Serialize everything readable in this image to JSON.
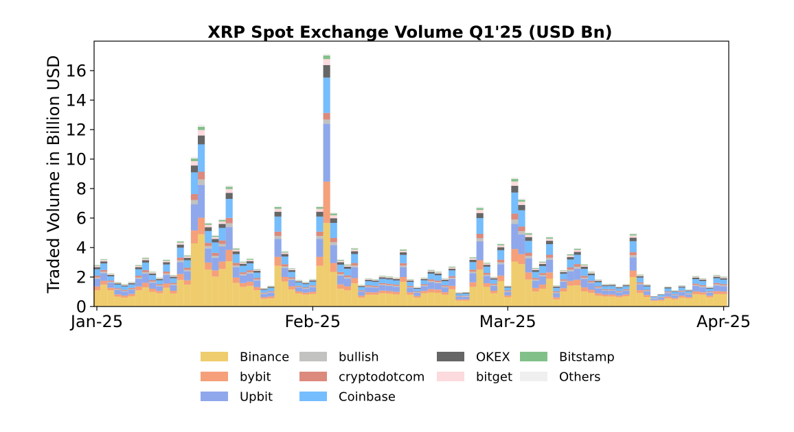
{
  "chart_data": {
    "type": "bar",
    "stacked": true,
    "title": "XRP Spot Exchange Volume Q1'25 (USD Bn)",
    "xlabel": "",
    "ylabel": "Traded Volume in Billion USD",
    "x_range": [
      "2025-01-01",
      "2025-04-01"
    ],
    "x_frequency": "daily",
    "xticks": [
      {
        "label": "Jan-25",
        "date": "2025-01-01"
      },
      {
        "label": "Feb-25",
        "date": "2025-02-01"
      },
      {
        "label": "Mar-25",
        "date": "2025-03-01"
      },
      {
        "label": "Apr-25",
        "date": "2025-04-01"
      }
    ],
    "yticks": [
      "0",
      "2",
      "4",
      "6",
      "8",
      "10",
      "12",
      "14",
      "16"
    ],
    "ylim": [
      0,
      18
    ],
    "grid": false,
    "legend_position": "bottom",
    "series": [
      {
        "name": "Binance",
        "color": "#efcd6e",
        "values": [
          1.1,
          1.48,
          1.1,
          0.67,
          0.6,
          0.7,
          1.1,
          1.3,
          1.0,
          0.9,
          1.27,
          0.88,
          1.8,
          1.48,
          4.28,
          4.9,
          2.5,
          2.03,
          2.54,
          3.07,
          1.6,
          1.33,
          1.4,
          1.1,
          0.52,
          0.55,
          2.76,
          1.69,
          1.15,
          0.88,
          0.81,
          0.85,
          2.76,
          5.67,
          2.34,
          1.2,
          1.1,
          1.57,
          0.6,
          0.8,
          0.8,
          0.9,
          0.87,
          0.82,
          1.67,
          0.8,
          0.6,
          0.9,
          0.95,
          0.93,
          0.8,
          1.17,
          0.4,
          0.4,
          1.33,
          2.5,
          1.33,
          0.9,
          1.72,
          0.63,
          3.04,
          2.88,
          1.83,
          1.02,
          1.21,
          1.88,
          0.48,
          1.02,
          1.41,
          1.44,
          1.02,
          0.92,
          0.73,
          0.68,
          0.68,
          0.62,
          0.7,
          2.0,
          0.92,
          0.65,
          0.38,
          0.4,
          0.55,
          0.48,
          0.6,
          0.55,
          0.84,
          0.8,
          0.62,
          0.84,
          0.84
        ]
      },
      {
        "name": "bybit",
        "color": "#f5a07a",
        "values": [
          0.26,
          0.26,
          0.17,
          0.15,
          0.14,
          0.15,
          0.26,
          0.31,
          0.21,
          0.16,
          0.29,
          0.19,
          0.4,
          0.3,
          0.88,
          1.12,
          0.48,
          0.42,
          0.51,
          0.77,
          0.36,
          0.26,
          0.28,
          0.22,
          0.11,
          0.13,
          0.61,
          0.31,
          0.22,
          0.14,
          0.13,
          0.15,
          0.61,
          2.8,
          0.61,
          0.3,
          0.27,
          0.36,
          0.13,
          0.17,
          0.16,
          0.18,
          0.18,
          0.17,
          0.33,
          0.16,
          0.11,
          0.16,
          0.23,
          0.22,
          0.17,
          0.23,
          0.08,
          0.09,
          0.31,
          0.64,
          0.25,
          0.17,
          0.38,
          0.12,
          0.86,
          0.67,
          0.48,
          0.24,
          0.28,
          0.43,
          0.14,
          0.22,
          0.33,
          0.38,
          0.28,
          0.22,
          0.17,
          0.13,
          0.13,
          0.11,
          0.12,
          0.44,
          0.19,
          0.13,
          0.05,
          0.07,
          0.12,
          0.09,
          0.13,
          0.09,
          0.19,
          0.17,
          0.11,
          0.2,
          0.18
        ]
      },
      {
        "name": "Upbit",
        "color": "#8fa8eb",
        "values": [
          0.52,
          0.53,
          0.35,
          0.3,
          0.28,
          0.29,
          0.52,
          0.62,
          0.41,
          0.32,
          0.58,
          0.38,
          0.8,
          0.61,
          1.77,
          2.23,
          0.96,
          0.85,
          1.02,
          1.55,
          0.71,
          0.52,
          0.56,
          0.44,
          0.22,
          0.26,
          1.22,
          0.62,
          0.44,
          0.28,
          0.26,
          0.31,
          1.22,
          3.93,
          1.22,
          0.6,
          0.53,
          0.73,
          0.27,
          0.33,
          0.32,
          0.36,
          0.35,
          0.35,
          0.67,
          0.32,
          0.22,
          0.32,
          0.47,
          0.44,
          0.33,
          0.47,
          0.17,
          0.17,
          0.62,
          1.28,
          0.5,
          0.34,
          0.77,
          0.24,
          1.71,
          1.34,
          0.96,
          0.49,
          0.56,
          0.86,
          0.29,
          0.44,
          0.65,
          0.75,
          0.56,
          0.44,
          0.33,
          0.26,
          0.26,
          0.23,
          0.25,
          0.89,
          0.38,
          0.26,
          0.1,
          0.14,
          0.25,
          0.19,
          0.25,
          0.18,
          0.37,
          0.34,
          0.21,
          0.39,
          0.36
        ]
      },
      {
        "name": "bullish",
        "color": "#c2c2c0",
        "values": [
          0.09,
          0.09,
          0.06,
          0.05,
          0.05,
          0.05,
          0.09,
          0.1,
          0.07,
          0.05,
          0.1,
          0.06,
          0.13,
          0.1,
          0.29,
          0.37,
          0.16,
          0.14,
          0.17,
          0.26,
          0.12,
          0.09,
          0.09,
          0.07,
          0.04,
          0.04,
          0.2,
          0.1,
          0.07,
          0.05,
          0.04,
          0.05,
          0.2,
          0.28,
          0.2,
          0.1,
          0.09,
          0.12,
          0.04,
          0.06,
          0.05,
          0.06,
          0.06,
          0.06,
          0.11,
          0.05,
          0.04,
          0.05,
          0.08,
          0.07,
          0.06,
          0.08,
          0.03,
          0.03,
          0.1,
          0.21,
          0.08,
          0.06,
          0.13,
          0.04,
          0.29,
          0.22,
          0.16,
          0.08,
          0.09,
          0.14,
          0.05,
          0.07,
          0.11,
          0.13,
          0.09,
          0.07,
          0.06,
          0.04,
          0.04,
          0.04,
          0.04,
          0.15,
          0.06,
          0.04,
          0.02,
          0.02,
          0.04,
          0.03,
          0.04,
          0.03,
          0.06,
          0.06,
          0.04,
          0.07,
          0.06
        ]
      },
      {
        "name": "cryptodotcom",
        "color": "#db8a7d",
        "values": [
          0.12,
          0.12,
          0.08,
          0.07,
          0.06,
          0.07,
          0.12,
          0.14,
          0.1,
          0.08,
          0.13,
          0.09,
          0.19,
          0.14,
          0.41,
          0.52,
          0.22,
          0.2,
          0.24,
          0.36,
          0.17,
          0.12,
          0.13,
          0.1,
          0.05,
          0.06,
          0.29,
          0.15,
          0.1,
          0.06,
          0.06,
          0.07,
          0.29,
          0.45,
          0.28,
          0.14,
          0.12,
          0.17,
          0.06,
          0.08,
          0.07,
          0.08,
          0.08,
          0.08,
          0.16,
          0.07,
          0.05,
          0.08,
          0.11,
          0.1,
          0.08,
          0.11,
          0.04,
          0.04,
          0.14,
          0.3,
          0.12,
          0.08,
          0.18,
          0.06,
          0.4,
          0.31,
          0.22,
          0.11,
          0.13,
          0.2,
          0.07,
          0.1,
          0.15,
          0.18,
          0.13,
          0.1,
          0.08,
          0.06,
          0.06,
          0.05,
          0.06,
          0.21,
          0.09,
          0.06,
          0.02,
          0.03,
          0.06,
          0.04,
          0.06,
          0.04,
          0.09,
          0.08,
          0.05,
          0.09,
          0.08
        ]
      },
      {
        "name": "Coinbase",
        "color": "#75bdfd",
        "values": [
          0.44,
          0.44,
          0.29,
          0.25,
          0.23,
          0.24,
          0.44,
          0.51,
          0.34,
          0.27,
          0.48,
          0.32,
          0.67,
          0.51,
          1.47,
          1.86,
          0.8,
          0.71,
          0.85,
          1.29,
          0.59,
          0.44,
          0.47,
          0.37,
          0.19,
          0.22,
          1.02,
          0.52,
          0.37,
          0.23,
          0.22,
          0.26,
          1.02,
          2.4,
          1.02,
          0.5,
          0.45,
          0.61,
          0.22,
          0.28,
          0.27,
          0.3,
          0.3,
          0.29,
          0.56,
          0.27,
          0.18,
          0.27,
          0.39,
          0.36,
          0.28,
          0.39,
          0.14,
          0.15,
          0.51,
          1.07,
          0.42,
          0.28,
          0.64,
          0.2,
          1.43,
          1.11,
          0.8,
          0.41,
          0.47,
          0.72,
          0.24,
          0.37,
          0.54,
          0.63,
          0.47,
          0.37,
          0.28,
          0.21,
          0.22,
          0.19,
          0.21,
          0.74,
          0.32,
          0.22,
          0.08,
          0.12,
          0.21,
          0.16,
          0.21,
          0.15,
          0.31,
          0.28,
          0.18,
          0.33,
          0.3
        ]
      },
      {
        "name": "OKEX",
        "color": "#666666",
        "values": [
          0.14,
          0.14,
          0.09,
          0.08,
          0.07,
          0.08,
          0.14,
          0.16,
          0.11,
          0.09,
          0.15,
          0.1,
          0.21,
          0.16,
          0.47,
          0.6,
          0.26,
          0.23,
          0.27,
          0.41,
          0.19,
          0.14,
          0.15,
          0.12,
          0.06,
          0.07,
          0.33,
          0.17,
          0.12,
          0.07,
          0.07,
          0.08,
          0.33,
          0.85,
          0.32,
          0.16,
          0.14,
          0.19,
          0.07,
          0.09,
          0.09,
          0.1,
          0.09,
          0.09,
          0.18,
          0.09,
          0.06,
          0.09,
          0.12,
          0.12,
          0.09,
          0.12,
          0.04,
          0.05,
          0.16,
          0.34,
          0.13,
          0.09,
          0.2,
          0.06,
          0.46,
          0.36,
          0.26,
          0.13,
          0.15,
          0.23,
          0.08,
          0.12,
          0.17,
          0.2,
          0.15,
          0.12,
          0.09,
          0.07,
          0.07,
          0.06,
          0.07,
          0.24,
          0.1,
          0.07,
          0.03,
          0.04,
          0.07,
          0.05,
          0.07,
          0.05,
          0.1,
          0.09,
          0.06,
          0.1,
          0.1
        ]
      },
      {
        "name": "bitget",
        "color": "#fddadd",
        "values": [
          0.09,
          0.09,
          0.06,
          0.05,
          0.05,
          0.05,
          0.09,
          0.1,
          0.07,
          0.05,
          0.1,
          0.06,
          0.13,
          0.1,
          0.29,
          0.37,
          0.16,
          0.14,
          0.17,
          0.26,
          0.12,
          0.09,
          0.09,
          0.07,
          0.04,
          0.04,
          0.2,
          0.1,
          0.07,
          0.05,
          0.04,
          0.05,
          0.2,
          0.4,
          0.2,
          0.1,
          0.09,
          0.12,
          0.04,
          0.06,
          0.05,
          0.06,
          0.06,
          0.06,
          0.11,
          0.05,
          0.04,
          0.05,
          0.08,
          0.07,
          0.06,
          0.08,
          0.03,
          0.03,
          0.1,
          0.21,
          0.08,
          0.06,
          0.13,
          0.04,
          0.29,
          0.22,
          0.16,
          0.08,
          0.09,
          0.14,
          0.05,
          0.07,
          0.11,
          0.13,
          0.09,
          0.07,
          0.06,
          0.04,
          0.04,
          0.04,
          0.04,
          0.15,
          0.06,
          0.04,
          0.02,
          0.02,
          0.04,
          0.03,
          0.04,
          0.03,
          0.06,
          0.06,
          0.04,
          0.07,
          0.06
        ]
      },
      {
        "name": "Bitstamp",
        "color": "#82c08a",
        "values": [
          0.05,
          0.05,
          0.03,
          0.03,
          0.03,
          0.03,
          0.05,
          0.06,
          0.04,
          0.03,
          0.06,
          0.04,
          0.08,
          0.06,
          0.18,
          0.22,
          0.1,
          0.08,
          0.1,
          0.15,
          0.07,
          0.05,
          0.06,
          0.04,
          0.02,
          0.03,
          0.12,
          0.06,
          0.04,
          0.03,
          0.03,
          0.03,
          0.12,
          0.25,
          0.12,
          0.06,
          0.05,
          0.07,
          0.03,
          0.03,
          0.03,
          0.04,
          0.04,
          0.03,
          0.07,
          0.03,
          0.02,
          0.03,
          0.05,
          0.04,
          0.03,
          0.05,
          0.02,
          0.02,
          0.06,
          0.13,
          0.05,
          0.03,
          0.08,
          0.02,
          0.17,
          0.13,
          0.1,
          0.05,
          0.06,
          0.09,
          0.03,
          0.04,
          0.07,
          0.08,
          0.06,
          0.04,
          0.03,
          0.03,
          0.03,
          0.02,
          0.02,
          0.09,
          0.04,
          0.03,
          0.01,
          0.01,
          0.02,
          0.02,
          0.03,
          0.02,
          0.04,
          0.03,
          0.02,
          0.04,
          0.04
        ]
      },
      {
        "name": "Others",
        "color": "#efefef",
        "values": [
          0.03,
          0.04,
          0.02,
          0.02,
          0.02,
          0.02,
          0.03,
          0.04,
          0.03,
          0.02,
          0.04,
          0.03,
          0.05,
          0.04,
          0.12,
          0.15,
          0.06,
          0.06,
          0.07,
          0.1,
          0.05,
          0.03,
          0.04,
          0.03,
          0.01,
          0.02,
          0.08,
          0.04,
          0.03,
          0.02,
          0.02,
          0.02,
          0.08,
          0.12,
          0.08,
          0.04,
          0.04,
          0.05,
          0.02,
          0.02,
          0.02,
          0.02,
          0.02,
          0.02,
          0.04,
          0.02,
          0.01,
          0.02,
          0.03,
          0.03,
          0.02,
          0.03,
          0.01,
          0.01,
          0.04,
          0.09,
          0.03,
          0.02,
          0.05,
          0.02,
          0.11,
          0.09,
          0.06,
          0.03,
          0.04,
          0.06,
          0.02,
          0.03,
          0.04,
          0.05,
          0.04,
          0.03,
          0.02,
          0.02,
          0.02,
          0.02,
          0.02,
          0.06,
          0.03,
          0.02,
          0.01,
          0.01,
          0.02,
          0.01,
          0.02,
          0.01,
          0.02,
          0.02,
          0.01,
          0.03,
          0.02
        ]
      }
    ]
  }
}
